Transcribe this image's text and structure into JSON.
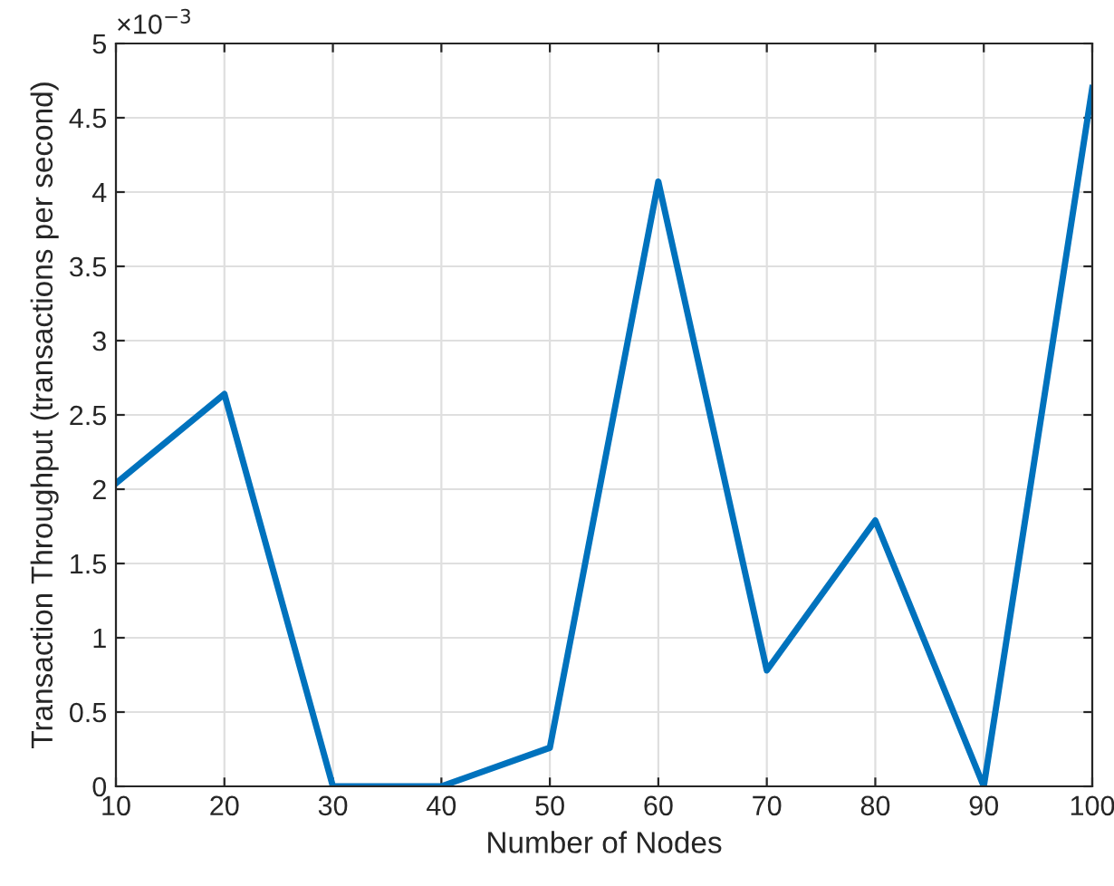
{
  "chart_data": {
    "type": "line",
    "xlabel": "Number of Nodes",
    "ylabel": "Transaction Throughput (transactions per second)",
    "x": [
      10,
      20,
      30,
      40,
      50,
      60,
      70,
      80,
      90,
      100
    ],
    "series": [
      {
        "color": "#0072bd",
        "values": [
          2.04,
          2.64,
          0,
          0,
          0.26,
          4.07,
          0.78,
          1.79,
          0,
          4.7
        ]
      }
    ],
    "xlim": [
      10,
      100
    ],
    "xticks": [
      10,
      20,
      30,
      40,
      50,
      60,
      70,
      80,
      90,
      100
    ],
    "ylim": [
      0,
      5
    ],
    "yticks": [
      0,
      0.5,
      1,
      1.5,
      2,
      2.5,
      3,
      3.5,
      4,
      4.5,
      5
    ],
    "annotations": [
      "×10$^{−3}$"
    ],
    "grid": true,
    "marker": "none",
    "line_style": "solid",
    "legend": false
  }
}
